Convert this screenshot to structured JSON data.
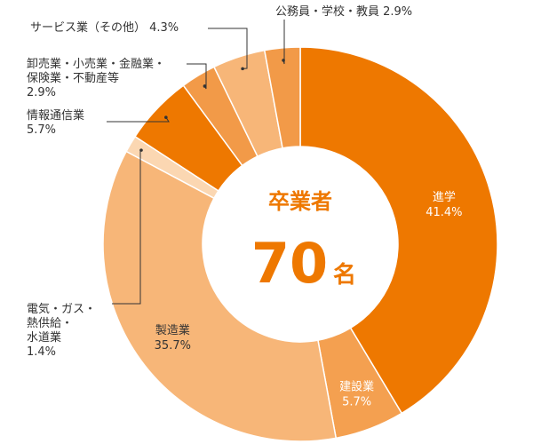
{
  "chart_data": {
    "type": "pie",
    "variant": "donut",
    "center": {
      "title": "卒業者",
      "number": "70",
      "unit": "名"
    },
    "slices": [
      {
        "name": "進学",
        "value": 41.4,
        "label_value": "41.4%",
        "color": "#ee7800",
        "label_color": "#ffffff"
      },
      {
        "name": "建設業",
        "value": 5.7,
        "label_value": "5.7%",
        "color": "#f4a050",
        "label_color": "#ffffff"
      },
      {
        "name": "製造業",
        "value": 35.7,
        "label_value": "35.7%",
        "color": "#f7b678",
        "label_color": "#333333"
      },
      {
        "name": "電気・ガス・熱供給・水道業",
        "value": 1.4,
        "label_value": "1.4%",
        "color": "#fbd7b2",
        "label_lines": [
          "電気・ガス・",
          "熱供給・",
          "水道業",
          "1.4%"
        ]
      },
      {
        "name": "情報通信業",
        "value": 5.7,
        "label_value": "5.7%",
        "color": "#ee7800",
        "label_lines": [
          "情報通信業",
          "5.7%"
        ]
      },
      {
        "name": "卸売業・小売業・金融業・保険業・不動産等",
        "value": 2.9,
        "label_value": "2.9%",
        "color": "#f29a48",
        "label_lines": [
          "卸売業・小売業・金融業・",
          "保険業・不動産等",
          "2.9%"
        ]
      },
      {
        "name": "サービス業（その他）",
        "value": 4.3,
        "label_value": "4.3%",
        "color": "#f7b678",
        "label_lines": [
          "サービス業（その他） 4.3%"
        ]
      },
      {
        "name": "公務員・学校・教員",
        "value": 2.9,
        "label_value": "2.9%",
        "color": "#f29a48",
        "label_lines": [
          "公務員・学校・教員 2.9%"
        ]
      }
    ]
  }
}
